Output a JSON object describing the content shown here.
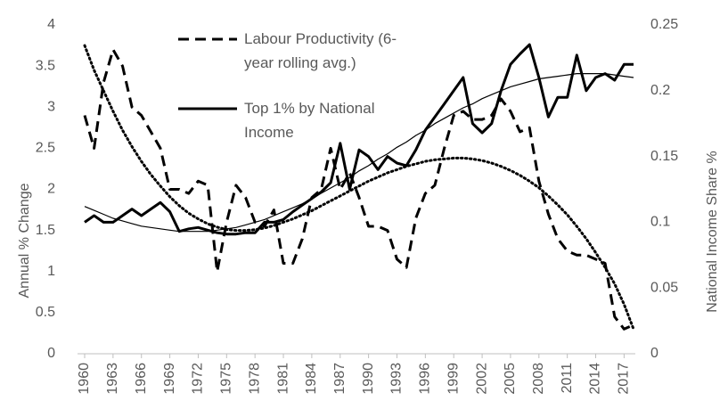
{
  "chart_data": {
    "type": "line",
    "y_label": "Annual % Change",
    "y2_label": "National Income Share %",
    "x": [
      1960,
      1961,
      1962,
      1963,
      1964,
      1965,
      1966,
      1967,
      1968,
      1969,
      1970,
      1971,
      1972,
      1973,
      1974,
      1975,
      1976,
      1977,
      1978,
      1979,
      1980,
      1981,
      1982,
      1983,
      1984,
      1985,
      1986,
      1987,
      1988,
      1989,
      1990,
      1991,
      1992,
      1993,
      1994,
      1995,
      1996,
      1997,
      1998,
      1999,
      2000,
      2001,
      2002,
      2003,
      2004,
      2005,
      2006,
      2007,
      2008,
      2009,
      2010,
      2011,
      2012,
      2013,
      2014,
      2015,
      2016,
      2017,
      2018
    ],
    "xlim": [
      1960,
      2018
    ],
    "xticks": [
      1960,
      1963,
      1966,
      1969,
      1972,
      1975,
      1978,
      1981,
      1984,
      1987,
      1990,
      1993,
      1996,
      1999,
      2002,
      2005,
      2008,
      2011,
      2014,
      2017
    ],
    "ylim": [
      0,
      4
    ],
    "yticks": [
      0,
      0.5,
      1,
      1.5,
      2,
      2.5,
      3,
      3.5,
      4
    ],
    "y2lim": [
      0,
      0.25
    ],
    "y2ticks": [
      0,
      0.05,
      0.1,
      0.15,
      0.2,
      0.25
    ],
    "grid": false,
    "legend": "top-left",
    "series": [
      {
        "name": "Labour Productivity (6-year rolling avg.)",
        "color": "#000000",
        "style": "dashed",
        "values": [
          2.9,
          2.5,
          3.3,
          3.7,
          3.5,
          3.0,
          2.9,
          2.7,
          2.5,
          2.0,
          2.0,
          1.95,
          2.1,
          2.05,
          1.0,
          1.6,
          2.05,
          1.9,
          1.6,
          1.55,
          1.75,
          1.1,
          1.1,
          1.4,
          1.9,
          2.0,
          2.5,
          2.0,
          2.2,
          1.9,
          1.55,
          1.55,
          1.5,
          1.15,
          1.05,
          1.65,
          1.95,
          2.05,
          2.5,
          2.9,
          2.95,
          2.85,
          2.85,
          2.9,
          3.1,
          2.95,
          2.7,
          2.75,
          2.1,
          1.7,
          1.4,
          1.25,
          1.2,
          1.2,
          1.15,
          1.1,
          0.45,
          0.3,
          0.35
        ]
      },
      {
        "name": "Top 1% by National Income",
        "color": "#000000",
        "style": "solid",
        "axis": "y2",
        "values": [
          0.1,
          0.105,
          0.1,
          0.1,
          0.105,
          0.11,
          0.105,
          0.11,
          0.115,
          0.108,
          0.093,
          0.095,
          0.096,
          0.094,
          0.092,
          0.091,
          0.091,
          0.092,
          0.092,
          0.1,
          0.1,
          0.102,
          0.108,
          0.113,
          0.118,
          0.123,
          0.13,
          0.16,
          0.125,
          0.155,
          0.15,
          0.14,
          0.15,
          0.145,
          0.143,
          0.155,
          0.17,
          0.18,
          0.19,
          0.2,
          0.21,
          0.175,
          0.168,
          0.175,
          0.2,
          0.22,
          0.228,
          0.235,
          0.21,
          0.18,
          0.195,
          0.195,
          0.227,
          0.2,
          0.21,
          0.213,
          0.208,
          0.22,
          0.22
        ]
      },
      {
        "color": "#000000",
        "style": "dotted",
        "values": [
          3.75,
          3.45,
          3.2,
          2.95,
          2.72,
          2.52,
          2.34,
          2.18,
          2.04,
          1.91,
          1.8,
          1.71,
          1.64,
          1.58,
          1.54,
          1.51,
          1.5,
          1.5,
          1.51,
          1.53,
          1.56,
          1.6,
          1.64,
          1.69,
          1.74,
          1.8,
          1.86,
          1.92,
          1.98,
          2.04,
          2.1,
          2.15,
          2.2,
          2.24,
          2.28,
          2.31,
          2.34,
          2.36,
          2.37,
          2.38,
          2.38,
          2.37,
          2.35,
          2.32,
          2.28,
          2.23,
          2.17,
          2.1,
          2.02,
          1.92,
          1.81,
          1.69,
          1.55,
          1.4,
          1.23,
          1.05,
          0.85,
          0.6,
          0.3
        ]
      },
      {
        "color": "#000000",
        "style": "thin",
        "axis": "y2",
        "values": [
          0.112,
          0.109,
          0.106,
          0.103,
          0.101,
          0.099,
          0.097,
          0.096,
          0.095,
          0.094,
          0.093,
          0.093,
          0.093,
          0.093,
          0.094,
          0.095,
          0.096,
          0.098,
          0.1,
          0.102,
          0.105,
          0.108,
          0.111,
          0.114,
          0.118,
          0.122,
          0.126,
          0.13,
          0.134,
          0.139,
          0.143,
          0.148,
          0.152,
          0.157,
          0.161,
          0.166,
          0.17,
          0.175,
          0.179,
          0.183,
          0.187,
          0.19,
          0.194,
          0.197,
          0.2,
          0.203,
          0.205,
          0.207,
          0.209,
          0.21,
          0.211,
          0.212,
          0.213,
          0.213,
          0.213,
          0.213,
          0.212,
          0.211,
          0.21
        ]
      }
    ]
  }
}
